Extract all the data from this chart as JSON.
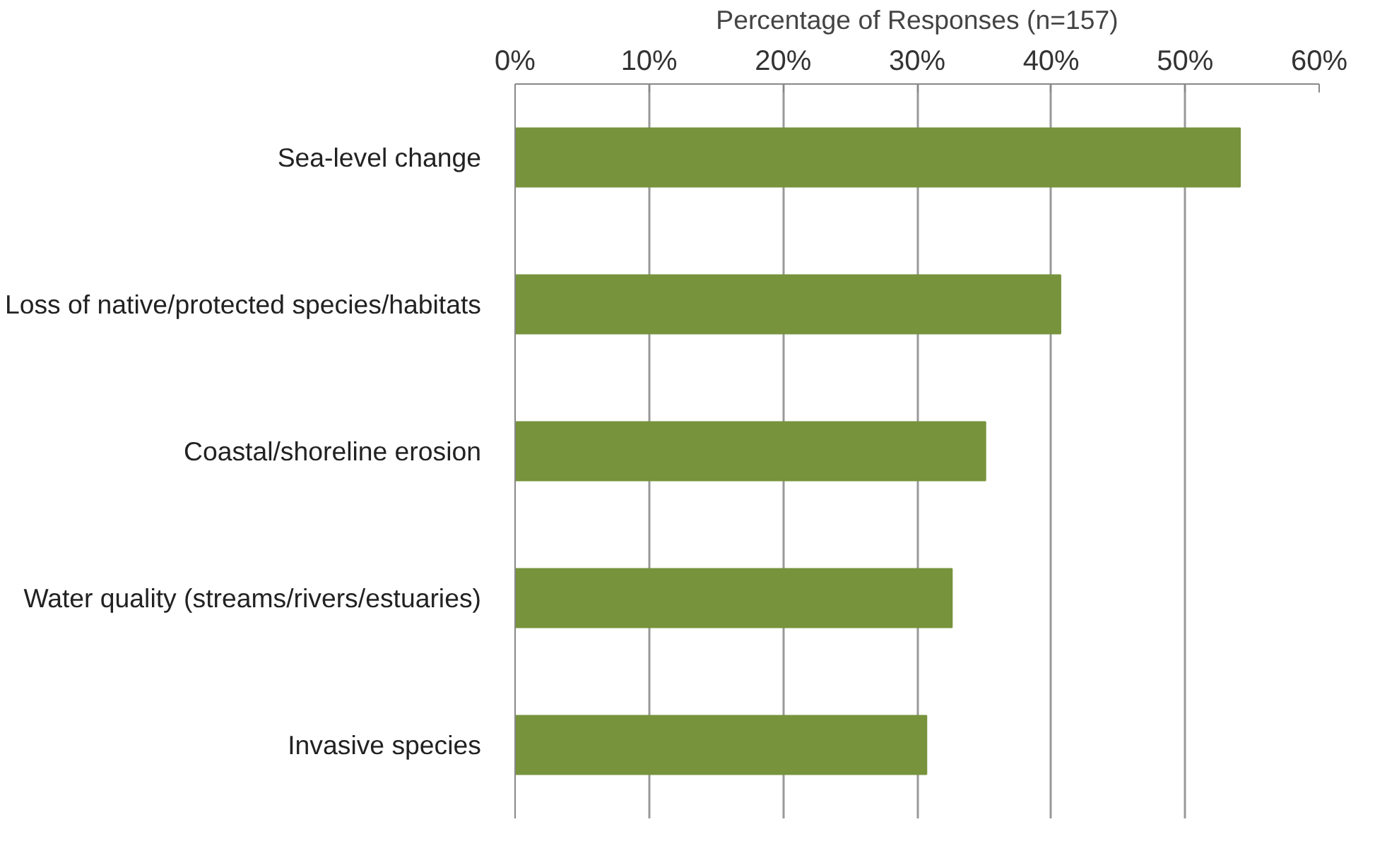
{
  "chart_data": {
    "type": "bar",
    "orientation": "horizontal",
    "xlabel": "Percentage of Responses (n=157)",
    "categories": [
      "Sea-level change",
      "Loss of native/protected species/habitats",
      "Coastal/shoreline erosion",
      "Water quality (streams/rivers/estuaries)",
      "Invasive species"
    ],
    "values": [
      54.1,
      40.7,
      35.1,
      32.6,
      30.7
    ],
    "color": "#77933c",
    "xlim": [
      0,
      60
    ],
    "xticks": [
      {
        "value": 0,
        "label": "0%"
      },
      {
        "value": 10,
        "label": "10%"
      },
      {
        "value": 20,
        "label": "20%"
      },
      {
        "value": 30,
        "label": "30%"
      },
      {
        "value": 40,
        "label": "40%"
      },
      {
        "value": 50,
        "label": "50%"
      },
      {
        "value": 60,
        "label": "60%"
      }
    ],
    "grid": "x"
  }
}
